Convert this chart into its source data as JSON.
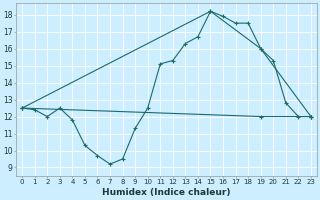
{
  "xlabel": "Humidex (Indice chaleur)",
  "bg_color": "#cceeff",
  "line_color": "#1a6b6b",
  "grid_color": "#ffffff",
  "xlim": [
    -0.5,
    23.5
  ],
  "ylim": [
    8.5,
    18.7
  ],
  "yticks": [
    9,
    10,
    11,
    12,
    13,
    14,
    15,
    16,
    17,
    18
  ],
  "xticks": [
    0,
    1,
    2,
    3,
    4,
    5,
    6,
    7,
    8,
    9,
    10,
    11,
    12,
    13,
    14,
    15,
    16,
    17,
    18,
    19,
    20,
    21,
    22,
    23
  ],
  "series1_x": [
    0,
    1,
    2,
    3,
    4,
    5,
    6,
    7,
    8,
    9,
    10,
    11,
    12,
    13,
    14,
    15,
    16,
    17,
    18,
    19,
    20,
    21,
    22,
    23
  ],
  "series1_y": [
    12.5,
    12.4,
    12.0,
    12.5,
    11.8,
    10.3,
    9.7,
    9.2,
    9.5,
    11.3,
    12.5,
    15.1,
    15.3,
    16.3,
    16.7,
    18.2,
    17.9,
    17.5,
    17.5,
    16.0,
    15.3,
    12.8,
    12.0,
    12.0
  ],
  "series2_x": [
    0,
    15,
    19,
    23
  ],
  "series2_y": [
    12.5,
    18.2,
    16.0,
    12.0
  ],
  "series3_x": [
    0,
    19,
    23
  ],
  "series3_y": [
    12.5,
    12.0,
    12.0
  ],
  "figsize": [
    3.2,
    2.0
  ],
  "dpi": 100
}
